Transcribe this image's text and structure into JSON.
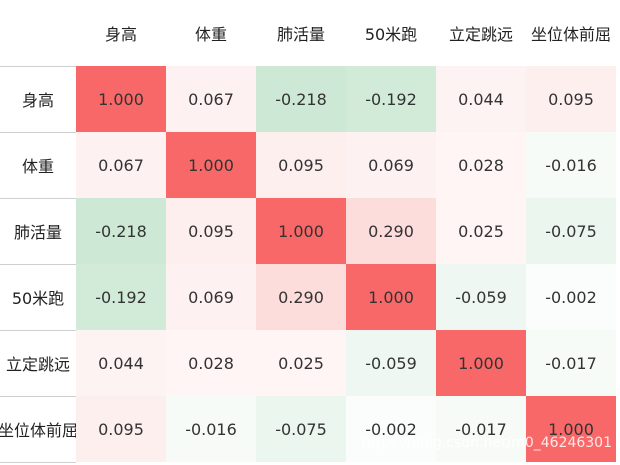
{
  "chart_data": {
    "type": "heatmap",
    "columns": [
      "身高",
      "体重",
      "肺活量",
      "50米跑",
      "立定跳远",
      "坐位体前屈"
    ],
    "row_labels": [
      "身高",
      "体重",
      "肺活量",
      "50米跑",
      "立定跳远",
      "坐位体前屈"
    ],
    "values": [
      [
        "1.000",
        "0.067",
        "-0.218",
        "-0.192",
        "0.044",
        "0.095"
      ],
      [
        "0.067",
        "1.000",
        "0.095",
        "0.069",
        "0.028",
        "-0.016"
      ],
      [
        "-0.218",
        "0.095",
        "1.000",
        "0.290",
        "0.025",
        "-0.075"
      ],
      [
        "-0.192",
        "0.069",
        "0.290",
        "1.000",
        "-0.059",
        "-0.002"
      ],
      [
        "0.044",
        "0.028",
        "0.025",
        "-0.059",
        "1.000",
        "-0.017"
      ],
      [
        "0.095",
        "-0.016",
        "-0.075",
        "-0.002",
        "-0.017",
        "1.000"
      ]
    ],
    "value_range": [
      -1,
      1
    ],
    "colors": {
      "positive": "#f86868",
      "negative": "#c8e6d0",
      "neutral": "#ffffff"
    }
  },
  "watermark": "https://blog.csdn.net/m0_46246301"
}
